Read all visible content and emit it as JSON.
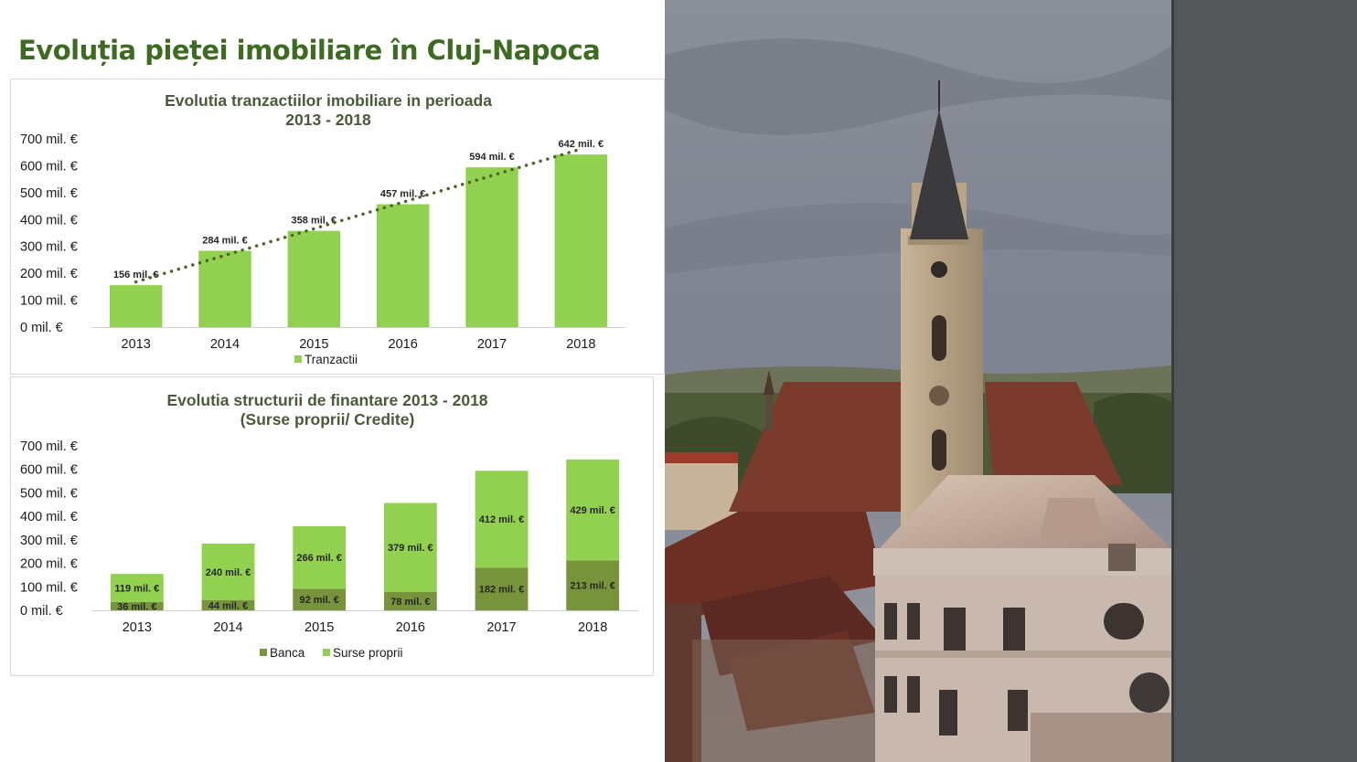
{
  "slide": {
    "title": "Evoluția pieței imobiliare în Cluj-Napoca"
  },
  "colors": {
    "title": "#3d6b21",
    "bar_light": "#92d050",
    "bar_dark": "#77933c",
    "trend": "#4f6228",
    "side_band": "#54575a"
  },
  "chart_data": [
    {
      "type": "bar",
      "title_lines": [
        "Evolutia tranzactiilor imobiliare in perioada",
        "2013 - 2018"
      ],
      "categories": [
        "2013",
        "2014",
        "2015",
        "2016",
        "2017",
        "2018"
      ],
      "series": [
        {
          "name": "Tranzactii",
          "values": [
            156,
            284,
            358,
            457,
            594,
            642
          ],
          "labels": [
            "156 mil. €",
            "284 mil. €",
            "358 mil. €",
            "457 mil. €",
            "594 mil. €",
            "642 mil. €"
          ]
        }
      ],
      "trendline": "dotted",
      "ylim": [
        0,
        700
      ],
      "yticks": [
        0,
        100,
        200,
        300,
        400,
        500,
        600,
        700
      ],
      "ytick_labels": [
        "0 mil. €",
        "100 mil. €",
        "200 mil. €",
        "300 mil. €",
        "400 mil. €",
        "500 mil. €",
        "600 mil. €",
        "700 mil. €"
      ],
      "legend": "bottom"
    },
    {
      "type": "bar",
      "stacked": true,
      "title_lines": [
        "Evolutia structurii de finantare 2013 - 2018",
        "(Surse proprii/ Credite)"
      ],
      "categories": [
        "2013",
        "2014",
        "2015",
        "2016",
        "2017",
        "2018"
      ],
      "series": [
        {
          "name": "Banca",
          "values": [
            36,
            44,
            92,
            78,
            182,
            213
          ],
          "labels": [
            "36 mil. €",
            "44 mil. €",
            "92 mil. €",
            "78 mil. €",
            "182 mil. €",
            "213 mil. €"
          ]
        },
        {
          "name": "Surse proprii",
          "values": [
            119,
            240,
            266,
            379,
            412,
            429
          ],
          "labels": [
            "119 mil. €",
            "240 mil. €",
            "266 mil. €",
            "379 mil. €",
            "412 mil. €",
            "429 mil. €"
          ]
        }
      ],
      "ylim": [
        0,
        700
      ],
      "yticks": [
        0,
        100,
        200,
        300,
        400,
        500,
        600,
        700
      ],
      "ytick_labels": [
        "0 mil. €",
        "100 mil. €",
        "200 mil. €",
        "300 mil. €",
        "400 mil. €",
        "500 mil. €",
        "600 mil. €",
        "700 mil. €"
      ],
      "legend": "bottom"
    }
  ]
}
